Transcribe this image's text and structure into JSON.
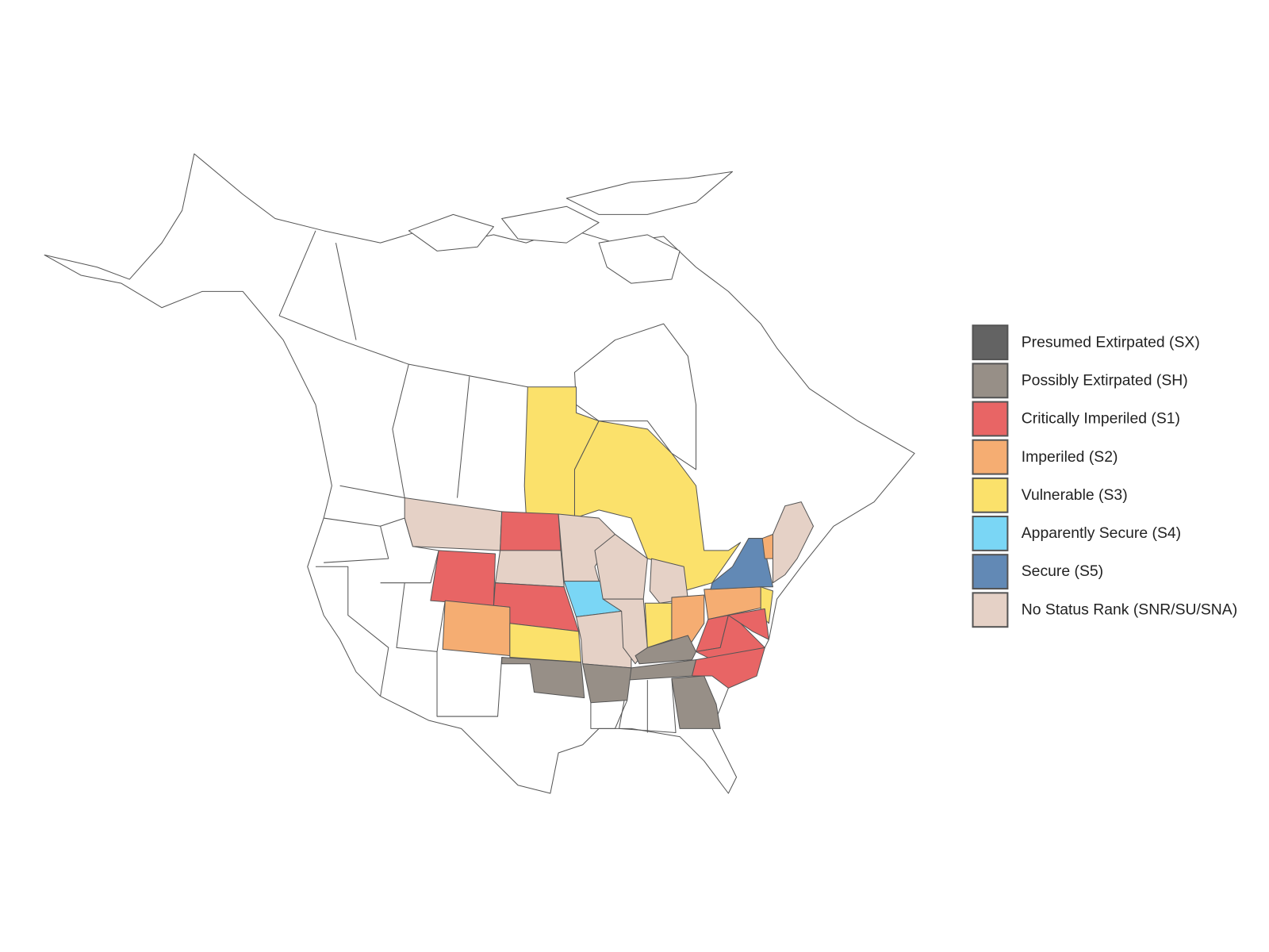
{
  "legend": {
    "items": [
      {
        "label": "Presumed Extirpated (SX)",
        "color": "#636363"
      },
      {
        "label": "Possibly Extirpated (SH)",
        "color": "#978f87"
      },
      {
        "label": "Critically Imperiled (S1)",
        "color": "#e86565"
      },
      {
        "label": "Imperiled (S2)",
        "color": "#f5ad72"
      },
      {
        "label": "Vulnerable (S3)",
        "color": "#fbe16b"
      },
      {
        "label": "Apparently Secure (S4)",
        "color": "#7ad6f5"
      },
      {
        "label": "Secure (S5)",
        "color": "#6289b5"
      },
      {
        "label": "No Status Rank (SNR/SU/SNA)",
        "color": "#e5d1c6"
      }
    ]
  }
}
